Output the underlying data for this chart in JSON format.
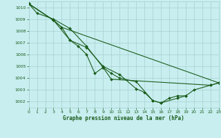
{
  "title": "Graphe pression niveau de la mer (hPa)",
  "background_color": "#c8eef0",
  "grid_color": "#a8d0d0",
  "line_color": "#1a5c1a",
  "xlim": [
    0,
    23
  ],
  "ylim": [
    1001.5,
    1010.5
  ],
  "xticks": [
    0,
    1,
    2,
    3,
    4,
    5,
    6,
    7,
    8,
    9,
    10,
    11,
    12,
    13,
    14,
    15,
    16,
    17,
    18,
    19,
    20,
    21,
    22,
    23
  ],
  "yticks": [
    1002,
    1003,
    1004,
    1005,
    1006,
    1007,
    1008,
    1009,
    1010
  ],
  "lines": [
    [
      [
        0,
        1010.3
      ],
      [
        1,
        1009.5
      ],
      [
        3,
        1009.0
      ],
      [
        5,
        1008.2
      ],
      [
        7,
        1006.7
      ],
      [
        9,
        1004.9
      ],
      [
        10,
        1004.4
      ],
      [
        11,
        1004.0
      ],
      [
        13,
        1003.7
      ],
      [
        15,
        1002.1
      ],
      [
        16,
        1001.9
      ],
      [
        18,
        1002.3
      ],
      [
        19,
        1002.5
      ]
    ],
    [
      [
        0,
        1010.3
      ],
      [
        3,
        1008.9
      ],
      [
        5,
        1007.2
      ],
      [
        7,
        1006.6
      ],
      [
        9,
        1005.0
      ],
      [
        11,
        1004.3
      ],
      [
        13,
        1003.1
      ],
      [
        14,
        1002.8
      ],
      [
        15,
        1002.1
      ],
      [
        16,
        1001.9
      ],
      [
        17,
        1002.3
      ],
      [
        18,
        1002.5
      ],
      [
        19,
        1002.5
      ],
      [
        20,
        1003.0
      ],
      [
        22,
        1003.4
      ],
      [
        23,
        1003.6
      ]
    ],
    [
      [
        0,
        1010.3
      ],
      [
        3,
        1008.9
      ],
      [
        4,
        1008.3
      ],
      [
        5,
        1007.2
      ],
      [
        6,
        1006.7
      ],
      [
        7,
        1006.0
      ],
      [
        8,
        1004.4
      ],
      [
        9,
        1004.9
      ],
      [
        10,
        1003.9
      ],
      [
        22,
        1003.4
      ],
      [
        23,
        1003.6
      ]
    ],
    [
      [
        0,
        1010.3
      ],
      [
        3,
        1008.9
      ],
      [
        4,
        1008.3
      ],
      [
        23,
        1003.6
      ]
    ]
  ]
}
